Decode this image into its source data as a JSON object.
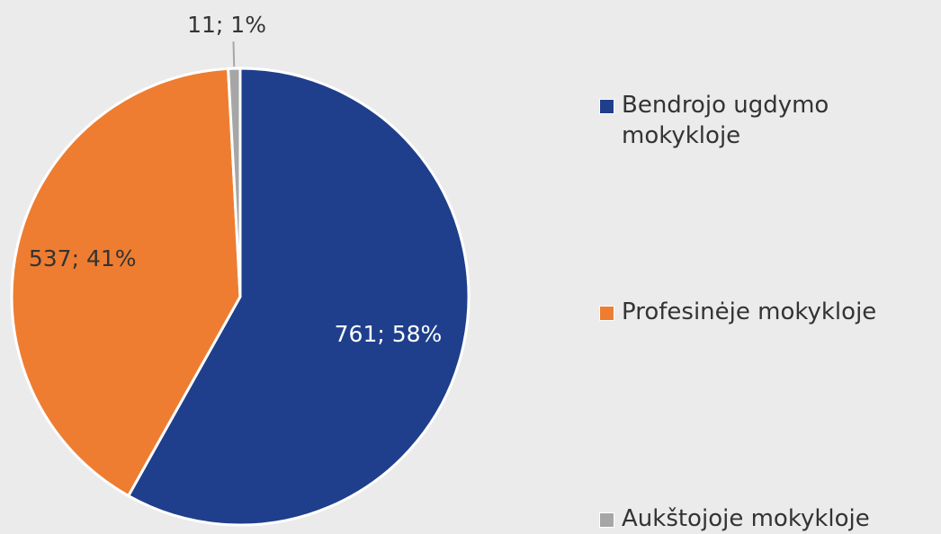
{
  "chart_data": {
    "type": "pie",
    "categories": [
      "Bendrojo ugdymo mokykloje",
      "Profesinėje mokykloje",
      "Aukštojoje mokykloje"
    ],
    "values": [
      761,
      537,
      11
    ],
    "value_labels": [
      "761; 58%",
      "537; 41%",
      "11; 1%"
    ],
    "colors": [
      "#1f3f8c",
      "#ee7d31",
      "#a6a6a6"
    ],
    "legend": "right"
  }
}
